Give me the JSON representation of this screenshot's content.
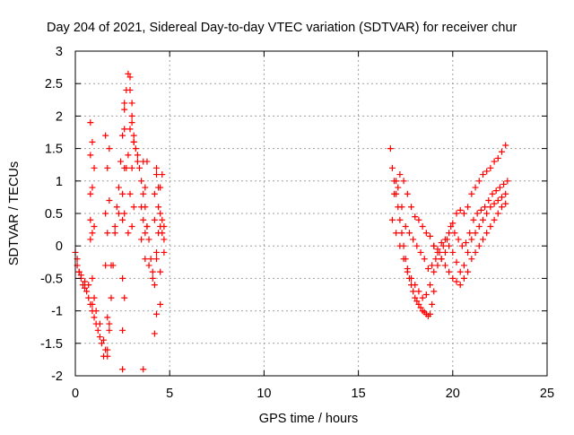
{
  "chart_data": {
    "type": "scatter",
    "title": "Day 204 of 2021, Sidereal Day-to-day VTEC variation (SDTVAR) for receiver chur",
    "xlabel": "GPS time / hours",
    "ylabel": "SDTVAR / TECUs",
    "xlim": [
      0,
      25
    ],
    "ylim": [
      -2,
      3
    ],
    "xticks": [
      0,
      5,
      10,
      15,
      20,
      25
    ],
    "yticks": [
      -2,
      -1.5,
      -1,
      -0.5,
      0,
      0.5,
      1,
      1.5,
      2,
      2.5,
      3
    ],
    "xtick_labels": [
      "0",
      "5",
      "10",
      "15",
      "20",
      "25"
    ],
    "ytick_labels": [
      "-2",
      "-1.5",
      "-1",
      "-0.5",
      "0",
      "0.5",
      "1",
      "1.5",
      "2",
      "2.5",
      "3"
    ],
    "grid": true,
    "marker": "plus",
    "series": [
      {
        "name": "SDTVAR",
        "color": "#ff0000",
        "x": [
          0.0,
          0.1,
          0.2,
          0.3,
          0.4,
          0.5,
          0.6,
          0.7,
          0.8,
          0.9,
          1.0,
          1.1,
          1.2,
          1.3,
          1.4,
          1.5,
          1.6,
          1.7,
          1.8,
          1.9,
          2.0,
          2.1,
          2.2,
          2.3,
          2.4,
          2.5,
          2.6,
          2.7,
          2.8,
          2.9,
          3.0,
          3.1,
          3.2,
          3.3,
          3.4,
          3.5,
          3.6,
          3.7,
          3.8,
          3.9,
          4.0,
          4.1,
          4.2,
          4.3,
          4.4,
          4.5,
          4.6,
          4.7,
          0.1,
          0.2,
          0.3,
          0.5,
          0.7,
          0.9,
          1.1,
          1.3,
          1.5,
          1.7,
          1.9,
          2.1,
          2.3,
          2.5,
          2.7,
          2.9,
          3.1,
          3.3,
          3.5,
          3.7,
          3.9,
          4.1,
          4.3,
          4.5,
          4.7,
          0.8,
          0.8,
          0.8,
          0.8,
          0.8,
          0.9,
          0.9,
          0.9,
          0.9,
          1.0,
          1.0,
          1.0,
          1.6,
          1.6,
          1.6,
          1.7,
          1.7,
          1.7,
          1.8,
          1.8,
          1.8,
          2.5,
          2.5,
          2.5,
          2.5,
          2.6,
          2.6,
          2.6,
          2.6,
          2.6,
          2.8,
          2.8,
          2.9,
          2.9,
          3.0,
          3.0,
          3.0,
          3.0,
          3.1,
          3.1,
          3.5,
          3.6,
          3.6,
          3.7,
          3.7,
          3.8,
          3.8,
          4.2,
          4.2,
          4.3,
          4.3,
          4.4,
          4.4,
          4.5,
          4.5,
          4.6,
          4.6,
          4.7,
          4.3,
          3.6,
          4.5,
          4.2,
          16.7,
          16.8,
          16.9,
          17.0,
          17.1,
          17.2,
          17.3,
          17.4,
          17.5,
          17.6,
          17.7,
          17.8,
          17.9,
          18.0,
          18.1,
          18.2,
          18.3,
          18.4,
          18.5,
          18.6,
          18.7,
          18.8,
          18.9,
          19.0,
          16.8,
          17.0,
          17.2,
          17.4,
          17.6,
          17.8,
          18.0,
          18.2,
          18.4,
          18.6,
          18.8,
          19.0,
          19.2,
          19.4,
          19.6,
          19.8,
          20.0,
          20.2,
          20.4,
          20.6,
          20.8,
          21.0,
          21.2,
          21.4,
          21.6,
          21.8,
          22.0,
          22.2,
          22.4,
          22.6,
          22.8,
          16.9,
          17.1,
          17.3,
          17.5,
          17.7,
          17.9,
          18.1,
          18.3,
          18.5,
          18.7,
          18.9,
          19.1,
          19.3,
          19.5,
          19.7,
          19.9,
          20.1,
          20.3,
          20.5,
          20.7,
          20.9,
          21.1,
          21.3,
          21.5,
          21.7,
          21.9,
          22.1,
          22.3,
          22.5,
          22.7,
          22.9,
          17.0,
          17.2,
          17.4,
          17.6,
          17.8,
          18.0,
          18.2,
          18.4,
          18.6,
          18.8,
          19.0,
          19.2,
          19.4,
          19.6,
          19.8,
          20.0,
          20.2,
          20.4,
          20.6,
          20.8,
          21.0,
          21.2,
          21.4,
          21.6,
          21.8,
          22.0,
          22.2,
          22.4,
          22.6,
          22.8,
          19.0,
          19.2,
          19.4,
          19.6,
          19.8,
          20.0,
          20.2,
          20.4,
          20.6,
          20.8,
          21.0,
          21.2,
          21.4,
          21.6,
          21.8,
          22.0,
          22.2,
          22.4,
          22.6,
          22.8
        ],
        "y": [
          -0.1,
          -0.3,
          -0.4,
          -0.5,
          -0.6,
          -0.65,
          -0.7,
          -0.8,
          -0.9,
          -1.0,
          -1.1,
          -1.2,
          -1.3,
          -1.4,
          -1.5,
          -1.45,
          -1.6,
          -1.7,
          -1.3,
          -0.8,
          -0.3,
          0.2,
          0.6,
          0.9,
          1.3,
          1.7,
          2.1,
          2.4,
          2.65,
          2.4,
          2.0,
          1.7,
          1.5,
          1.3,
          1.2,
          1.0,
          0.8,
          0.6,
          0.3,
          0.1,
          -0.2,
          -0.4,
          0.8,
          1.1,
          0.9,
          0.5,
          0.2,
          -0.1,
          -0.2,
          -0.4,
          -0.45,
          -0.55,
          -0.6,
          -0.9,
          -1.0,
          -1.2,
          -1.7,
          -1.1,
          -0.3,
          0.3,
          0.5,
          0.8,
          1.2,
          1.8,
          1.6,
          1.4,
          0.6,
          0.2,
          -0.3,
          -0.5,
          -0.2,
          0.3,
          0.1,
          0.1,
          0.4,
          0.8,
          1.4,
          1.9,
          -0.5,
          0.2,
          0.9,
          1.6,
          -0.8,
          0.3,
          1.2,
          -0.3,
          0.5,
          1.7,
          -1.6,
          0.2,
          1.2,
          -1.2,
          0.7,
          1.5,
          -1.9,
          -1.3,
          -0.5,
          0.4,
          -0.8,
          0.5,
          1.2,
          1.8,
          2.2,
          0.2,
          1.4,
          0.8,
          2.6,
          0.3,
          1.2,
          1.9,
          2.2,
          0.6,
          1.6,
          0.1,
          0.4,
          1.3,
          -0.2,
          0.9,
          0.3,
          1.3,
          -0.6,
          0.4,
          -0.1,
          1.2,
          0.6,
          0.2,
          -0.4,
          0.9,
          0.4,
          1.1,
          0.3,
          -1.05,
          -1.9,
          -0.9,
          -1.35,
          1.5,
          1.2,
          1.0,
          0.8,
          0.6,
          0.4,
          0.2,
          0.0,
          -0.2,
          -0.4,
          -0.5,
          -0.6,
          -0.7,
          -0.8,
          -0.85,
          -0.9,
          -0.95,
          -1.0,
          -1.02,
          -1.05,
          -1.08,
          -1.05,
          -0.9,
          -0.7,
          0.4,
          0.2,
          0.0,
          -0.2,
          -0.35,
          -0.5,
          -0.6,
          -0.7,
          -0.8,
          -0.75,
          -0.6,
          -0.4,
          -0.3,
          -0.2,
          -0.1,
          0.0,
          -0.1,
          -0.25,
          -0.4,
          -0.3,
          -0.1,
          0.1,
          0.2,
          0.3,
          0.4,
          0.5,
          0.6,
          0.65,
          0.7,
          0.75,
          0.8,
          0.8,
          0.9,
          0.6,
          0.3,
          0.2,
          0.1,
          0.0,
          -0.1,
          -0.2,
          -0.35,
          -0.3,
          -0.2,
          -0.1,
          0.0,
          0.1,
          0.3,
          0.2,
          0.1,
          0.0,
          0.05,
          0.2,
          0.4,
          0.5,
          0.55,
          0.6,
          0.7,
          0.8,
          0.85,
          0.9,
          0.95,
          1.0,
          1.0,
          1.1,
          1.0,
          0.8,
          0.6,
          0.45,
          0.4,
          0.3,
          0.2,
          0.15,
          0.0,
          -0.05,
          0.05,
          0.1,
          0.2,
          0.35,
          0.5,
          0.55,
          0.5,
          0.6,
          0.8,
          0.9,
          1.0,
          1.1,
          1.15,
          1.2,
          1.3,
          1.35,
          1.45,
          1.55,
          0.0,
          -0.1,
          -0.2,
          -0.3,
          -0.4,
          -0.5,
          -0.55,
          -0.6,
          -0.5,
          -0.4,
          -0.2,
          -0.1,
          0.0,
          0.1,
          0.2,
          0.3,
          0.4,
          0.5,
          0.6,
          0.65
        ]
      }
    ]
  }
}
